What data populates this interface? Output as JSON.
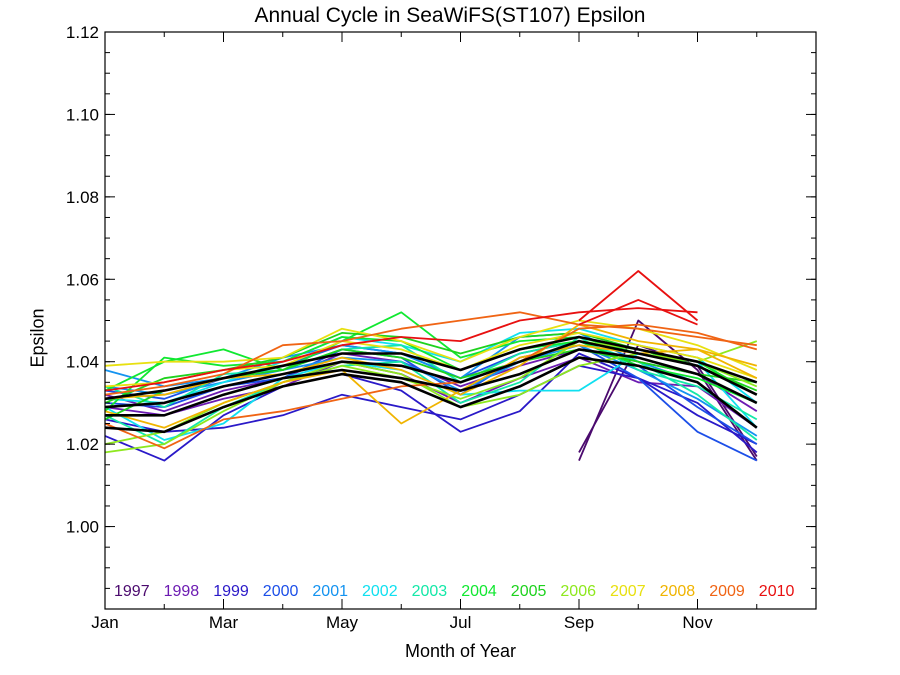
{
  "chart_data": {
    "type": "line",
    "title": "Annual Cycle in SeaWiFS(ST107) Epsilon",
    "xlabel": "Month of Year",
    "ylabel": "Epsilon",
    "xlim": [
      1,
      13
    ],
    "ylim": [
      0.98,
      1.12
    ],
    "x_ticks": [
      {
        "value": 1,
        "label": "Jan"
      },
      {
        "value": 3,
        "label": "Mar"
      },
      {
        "value": 5,
        "label": "May"
      },
      {
        "value": 7,
        "label": "Jul"
      },
      {
        "value": 9,
        "label": "Sep"
      },
      {
        "value": 11,
        "label": "Nov"
      }
    ],
    "y_ticks": [
      {
        "value": 1.0,
        "label": "1.00"
      },
      {
        "value": 1.02,
        "label": "1.02"
      },
      {
        "value": 1.04,
        "label": "1.04"
      },
      {
        "value": 1.06,
        "label": "1.06"
      },
      {
        "value": 1.08,
        "label": "1.08"
      },
      {
        "value": 1.1,
        "label": "1.10"
      },
      {
        "value": 1.12,
        "label": "1.12"
      }
    ],
    "legend_placement": "bottom",
    "grid": false,
    "x": [
      1,
      2,
      3,
      4,
      5,
      6,
      7,
      8,
      9,
      10,
      11,
      12
    ],
    "series": [
      {
        "name": "1997",
        "color": "#4b0a6e",
        "lines": [
          [
            null,
            null,
            null,
            null,
            null,
            null,
            null,
            null,
            1.018,
            1.044,
            1.039,
            1.017
          ],
          [
            null,
            null,
            null,
            null,
            null,
            null,
            null,
            null,
            1.016,
            1.05,
            1.038,
            1.016
          ]
        ]
      },
      {
        "name": "1998",
        "color": "#6c1bb2",
        "lines": [
          [
            1.032,
            1.028,
            1.033,
            1.036,
            1.042,
            1.04,
            1.034,
            1.039,
            1.043,
            1.04,
            1.037,
            1.028
          ],
          [
            1.029,
            1.027,
            1.031,
            1.034,
            1.04,
            1.037,
            1.03,
            1.036,
            1.041,
            1.035,
            1.034,
            1.024
          ]
        ]
      },
      {
        "name": "1999",
        "color": "#2a19c8",
        "lines": [
          [
            1.022,
            1.016,
            1.027,
            1.034,
            1.037,
            1.033,
            1.023,
            1.028,
            1.042,
            1.036,
            1.03,
            1.018
          ],
          [
            1.026,
            1.023,
            1.024,
            1.027,
            1.032,
            1.029,
            1.026,
            1.032,
            1.039,
            1.036,
            1.027,
            1.02
          ]
        ]
      },
      {
        "name": "2000",
        "color": "#1c4fe8",
        "lines": [
          [
            1.03,
            1.029,
            1.034,
            1.036,
            1.043,
            1.041,
            1.032,
            1.041,
            1.044,
            1.036,
            1.023,
            1.016
          ],
          [
            1.033,
            1.031,
            1.036,
            1.039,
            1.044,
            1.042,
            1.036,
            1.042,
            1.045,
            1.039,
            1.029,
            1.02
          ]
        ]
      },
      {
        "name": "2001",
        "color": "#1493f0",
        "lines": [
          [
            1.038,
            1.034,
            1.036,
            1.041,
            1.044,
            1.042,
            1.036,
            1.046,
            1.047,
            1.04,
            1.035,
            1.024
          ],
          [
            1.034,
            1.032,
            1.035,
            1.038,
            1.041,
            1.04,
            1.033,
            1.04,
            1.044,
            1.038,
            1.031,
            1.022
          ]
        ]
      },
      {
        "name": "2002",
        "color": "#10e0f0",
        "lines": [
          [
            1.031,
            1.03,
            1.035,
            1.04,
            1.046,
            1.044,
            1.04,
            1.047,
            1.048,
            1.044,
            1.041,
            1.03
          ],
          [
            1.029,
            1.021,
            1.025,
            1.036,
            1.04,
            1.038,
            1.032,
            1.033,
            1.033,
            1.042,
            1.04,
            1.024
          ]
        ]
      },
      {
        "name": "2003",
        "color": "#14e8a8",
        "lines": [
          [
            1.034,
            1.029,
            1.037,
            1.038,
            1.043,
            1.044,
            1.035,
            1.042,
            1.045,
            1.04,
            1.032,
            1.021
          ],
          [
            1.027,
            1.02,
            1.029,
            1.035,
            1.039,
            1.04,
            1.03,
            1.035,
            1.046,
            1.038,
            1.034,
            1.026
          ]
        ]
      },
      {
        "name": "2004",
        "color": "#10e830",
        "lines": [
          [
            1.033,
            1.04,
            1.043,
            1.038,
            1.045,
            1.052,
            1.041,
            1.045,
            1.046,
            1.042,
            1.04,
            1.032
          ],
          [
            1.028,
            1.041,
            1.039,
            1.04,
            1.046,
            1.045,
            1.038,
            1.043,
            1.045,
            1.039,
            1.036,
            1.03
          ]
        ]
      },
      {
        "name": "2005",
        "color": "#1ed21e",
        "lines": [
          [
            1.03,
            1.036,
            1.038,
            1.041,
            1.047,
            1.046,
            1.042,
            1.046,
            1.047,
            1.043,
            1.039,
            1.033
          ],
          [
            1.026,
            1.033,
            1.036,
            1.038,
            1.043,
            1.041,
            1.036,
            1.04,
            1.043,
            1.04,
            1.037,
            1.035
          ]
        ]
      },
      {
        "name": "2006",
        "color": "#8ee81e",
        "lines": [
          [
            1.018,
            1.02,
            1.028,
            1.035,
            1.04,
            1.037,
            1.029,
            1.032,
            1.039,
            1.042,
            1.04,
            1.034
          ],
          [
            1.02,
            1.023,
            1.03,
            1.035,
            1.039,
            1.036,
            1.031,
            1.036,
            1.045,
            1.043,
            1.04,
            1.045
          ]
        ]
      },
      {
        "name": "2007",
        "color": "#e8e010",
        "lines": [
          [
            1.039,
            1.04,
            1.04,
            1.041,
            1.048,
            1.045,
            1.04,
            1.046,
            1.05,
            1.048,
            1.044,
            1.038
          ],
          [
            1.034,
            1.035,
            1.038,
            1.039,
            1.045,
            1.043,
            1.038,
            1.044,
            1.047,
            1.044,
            1.041,
            1.036
          ]
        ]
      },
      {
        "name": "2008",
        "color": "#f0b400",
        "lines": [
          [
            1.028,
            1.024,
            1.03,
            1.035,
            1.038,
            1.025,
            1.033,
            1.041,
            1.044,
            1.042,
            1.043,
            1.036
          ],
          [
            1.031,
            1.032,
            1.036,
            1.037,
            1.041,
            1.038,
            1.032,
            1.039,
            1.049,
            1.045,
            1.043,
            1.039
          ]
        ]
      },
      {
        "name": "2009",
        "color": "#f06414",
        "lines": [
          [
            1.025,
            1.019,
            1.026,
            1.028,
            1.031,
            1.034,
            1.035,
            1.04,
            1.048,
            1.049,
            1.047,
            1.043
          ],
          [
            1.032,
            1.034,
            1.037,
            1.044,
            1.045,
            1.048,
            1.05,
            1.052,
            1.049,
            1.048,
            1.046,
            1.044
          ]
        ]
      },
      {
        "name": "2010",
        "color": "#e81010",
        "lines": [
          [
            1.033,
            1.035,
            1.038,
            1.04,
            1.044,
            1.046,
            1.045,
            1.05,
            1.052,
            1.053,
            1.052,
            null
          ],
          [
            null,
            null,
            null,
            null,
            null,
            null,
            null,
            null,
            1.05,
            1.062,
            1.05,
            null
          ],
          [
            null,
            null,
            null,
            null,
            null,
            null,
            null,
            null,
            1.049,
            1.055,
            1.049,
            null
          ]
        ]
      }
    ],
    "mean_lines": {
      "color": "#000000",
      "lines": [
        [
          1.029,
          1.03,
          1.034,
          1.037,
          1.04,
          1.039,
          1.035,
          1.04,
          1.045,
          1.042,
          1.039,
          1.032
        ],
        [
          1.031,
          1.033,
          1.036,
          1.039,
          1.042,
          1.042,
          1.038,
          1.043,
          1.046,
          1.043,
          1.04,
          1.035
        ],
        [
          1.024,
          1.023,
          1.029,
          1.034,
          1.037,
          1.035,
          1.029,
          1.034,
          1.041,
          1.039,
          1.035,
          1.024
        ],
        [
          1.027,
          1.027,
          1.032,
          1.036,
          1.038,
          1.036,
          1.033,
          1.037,
          1.043,
          1.041,
          1.037,
          1.03
        ]
      ]
    }
  }
}
